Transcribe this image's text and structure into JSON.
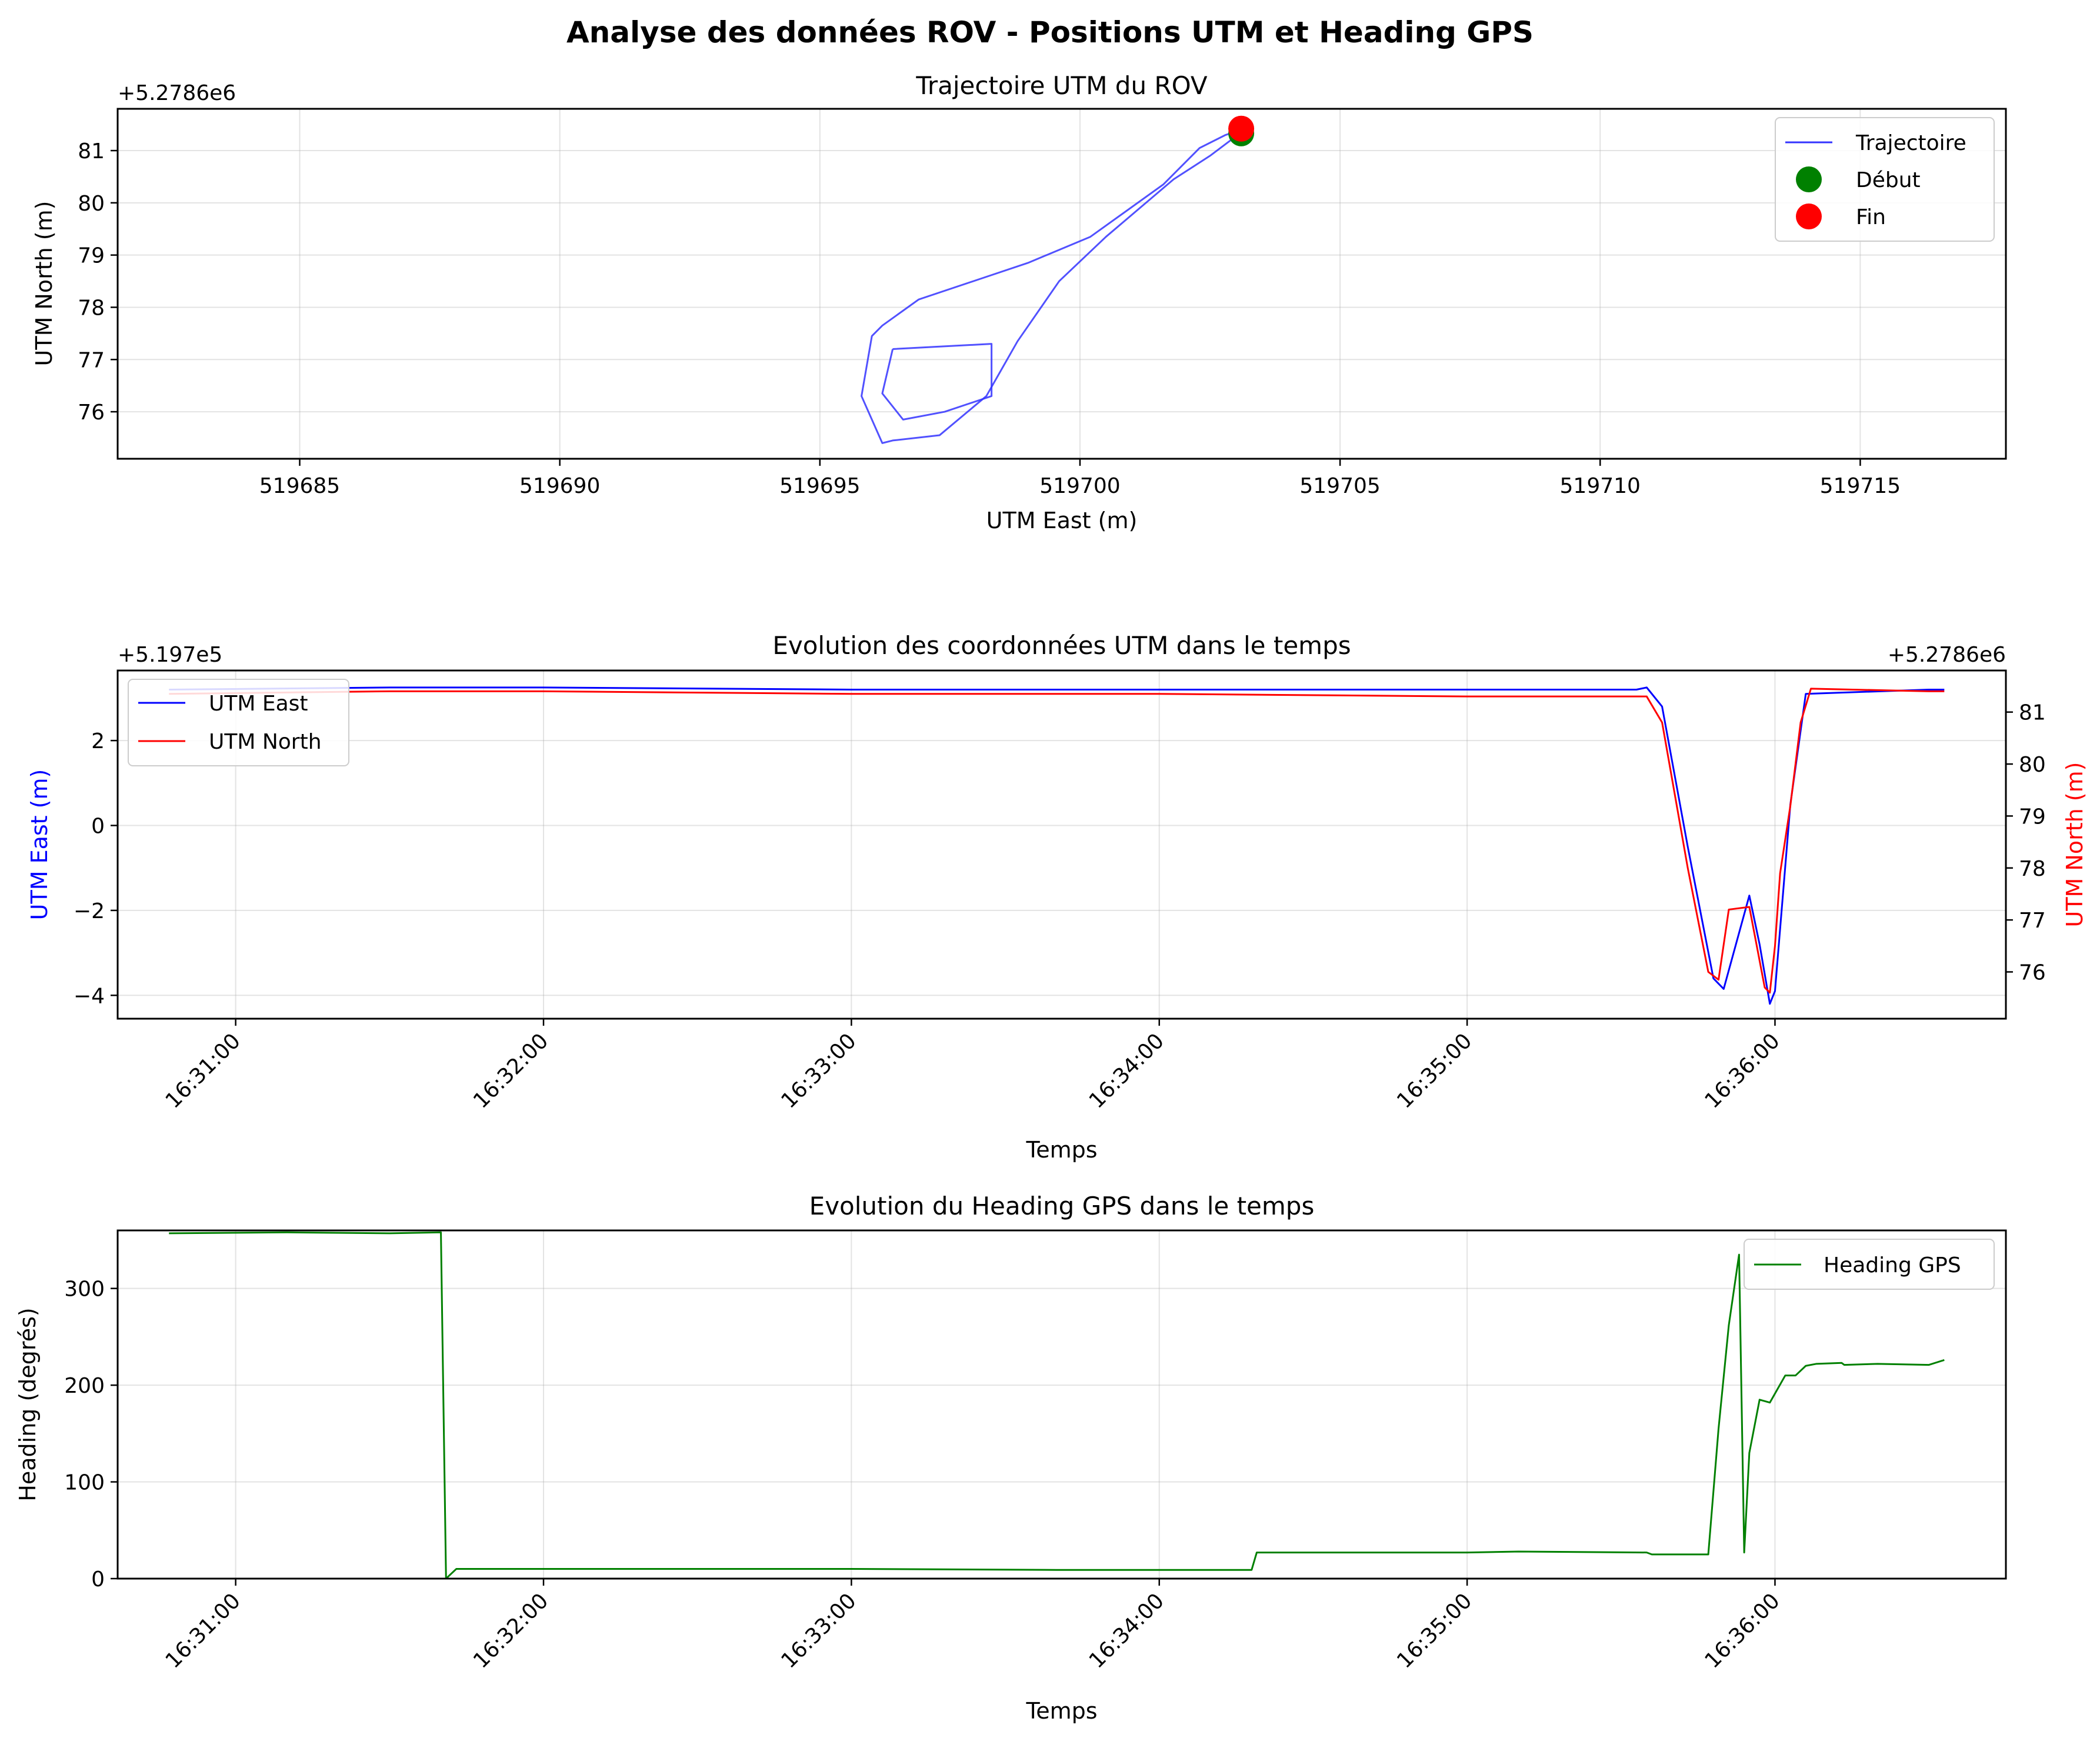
{
  "figure": {
    "suptitle": "Analyse des données ROV - Positions UTM et Heading GPS"
  },
  "chart_data": [
    {
      "type": "line",
      "title": "Trajectoire UTM du ROV",
      "xlabel": "UTM East (m)",
      "ylabel": "UTM North (m)",
      "x_offset_label": "",
      "y_offset_label": "+5.2786e6",
      "xlim": [
        519681.5,
        519717.8
      ],
      "ylim": [
        75.1,
        81.8
      ],
      "xticks": [
        519685,
        519690,
        519695,
        519700,
        519705,
        519710,
        519715
      ],
      "yticks": [
        76,
        77,
        78,
        79,
        80,
        81
      ],
      "grid": true,
      "legend_position": "upper right",
      "series": [
        {
          "name": "Trajectoire",
          "color": "#3333ff",
          "x": [
            519703.1,
            519702.8,
            519702.3,
            519701.6,
            519700.2,
            519699.0,
            519698.1,
            519696.9,
            519696.2,
            519696.0,
            519695.8,
            519696.2,
            519696.4,
            519697.3,
            519698.2,
            519698.8,
            519699.6,
            519700.5,
            519701.8,
            519702.5,
            519703.1,
            519703.2
          ],
          "y": [
            81.4,
            81.3,
            81.05,
            80.35,
            79.35,
            78.85,
            78.55,
            78.15,
            77.65,
            77.45,
            76.3,
            75.4,
            75.45,
            75.55,
            76.3,
            77.35,
            78.5,
            79.35,
            80.45,
            80.9,
            81.35,
            81.4
          ],
          "loop_x": [
            519696.4,
            519698.3,
            519698.3,
            519697.4,
            519696.6,
            519696.2,
            519696.4
          ],
          "loop_y": [
            77.2,
            77.3,
            76.3,
            76.0,
            75.85,
            76.35,
            77.2
          ]
        },
        {
          "name": "Début",
          "color": "#008000",
          "x": [
            519703.1
          ],
          "y": [
            81.33
          ],
          "marker": "circle"
        },
        {
          "name": "Fin",
          "color": "#ff0000",
          "x": [
            519703.1
          ],
          "y": [
            81.42
          ],
          "marker": "circle"
        }
      ]
    },
    {
      "type": "line",
      "title": "Evolution des coordonnées UTM dans le temps",
      "xlabel": "Temps",
      "ylabel": "UTM East (m)",
      "ylabel_right": "UTM North (m)",
      "y_offset_label": "+5.197e5",
      "y_offset_label_right": "+5.2786e6",
      "xlim": [
        "16:30:37",
        "16:36:45"
      ],
      "ylim": [
        -4.55,
        3.65
      ],
      "ylim_right": [
        75.1,
        81.8
      ],
      "xticks": [
        "16:31:00",
        "16:32:00",
        "16:33:00",
        "16:34:00",
        "16:35:00",
        "16:36:00"
      ],
      "yticks": [
        -4,
        -2,
        0,
        2
      ],
      "yticks_right": [
        76,
        77,
        78,
        79,
        80,
        81
      ],
      "grid": true,
      "legend_position": "upper left",
      "series": [
        {
          "name": "UTM East",
          "axis": "left",
          "color": "#0000ff",
          "x": [
            "16:30:47",
            "16:31:30",
            "16:32:00",
            "16:33:00",
            "16:34:00",
            "16:35:00",
            "16:35:33",
            "16:35:35",
            "16:35:38",
            "16:35:43",
            "16:35:48",
            "16:35:50",
            "16:35:55",
            "16:35:57",
            "16:35:59",
            "16:36:00",
            "16:36:03",
            "16:36:06",
            "16:36:30",
            "16:36:33"
          ],
          "y": [
            3.2,
            3.25,
            3.25,
            3.2,
            3.2,
            3.2,
            3.2,
            3.25,
            2.8,
            -0.5,
            -3.6,
            -3.85,
            -1.65,
            -2.8,
            -4.2,
            -3.9,
            0.5,
            3.1,
            3.2,
            3.2
          ]
        },
        {
          "name": "UTM North",
          "axis": "right",
          "color": "#ff0000",
          "x": [
            "16:30:47",
            "16:31:30",
            "16:32:00",
            "16:33:00",
            "16:34:00",
            "16:35:00",
            "16:35:33",
            "16:35:35",
            "16:35:38",
            "16:35:43",
            "16:35:47",
            "16:35:49",
            "16:35:51",
            "16:35:55",
            "16:35:58",
            "16:35:59",
            "16:36:00",
            "16:36:01",
            "16:36:03",
            "16:36:05",
            "16:36:07",
            "16:36:30",
            "16:36:33"
          ],
          "y": [
            81.35,
            81.4,
            81.4,
            81.35,
            81.35,
            81.3,
            81.3,
            81.3,
            80.8,
            78.0,
            76.0,
            75.85,
            77.2,
            77.25,
            75.7,
            75.6,
            76.5,
            77.9,
            79.2,
            80.8,
            81.45,
            81.4,
            81.4
          ]
        }
      ]
    },
    {
      "type": "line",
      "title": "Evolution du Heading GPS dans le temps",
      "xlabel": "Temps",
      "ylabel": "Heading (degrés)",
      "xlim": [
        "16:30:37",
        "16:36:45"
      ],
      "ylim": [
        0,
        360
      ],
      "xticks": [
        "16:31:00",
        "16:32:00",
        "16:33:00",
        "16:34:00",
        "16:35:00",
        "16:36:00"
      ],
      "yticks": [
        0,
        100,
        200,
        300
      ],
      "grid": true,
      "legend_position": "upper right",
      "series": [
        {
          "name": "Heading GPS",
          "color": "#008000",
          "x": [
            "16:30:47",
            "16:31:10",
            "16:31:30",
            "16:31:40",
            "16:31:41",
            "16:31:43",
            "16:32:00",
            "16:33:00",
            "16:33:40",
            "16:34:00",
            "16:34:18",
            "16:34:19",
            "16:35:00",
            "16:35:10",
            "16:35:35",
            "16:35:36",
            "16:35:47",
            "16:35:49",
            "16:35:51",
            "16:35:53",
            "16:35:54",
            "16:35:55",
            "16:35:57",
            "16:35:59",
            "16:36:02",
            "16:36:04",
            "16:36:06",
            "16:36:08",
            "16:36:13",
            "16:36:13.5",
            "16:36:20",
            "16:36:30",
            "16:36:33"
          ],
          "y": [
            357,
            358,
            357,
            358,
            0,
            10,
            10,
            10,
            9,
            9,
            9,
            27,
            27,
            28,
            27,
            25,
            25,
            155,
            262,
            335,
            27,
            130,
            185,
            182,
            210,
            210,
            220,
            222,
            223,
            221,
            222,
            221,
            226
          ]
        }
      ]
    }
  ]
}
